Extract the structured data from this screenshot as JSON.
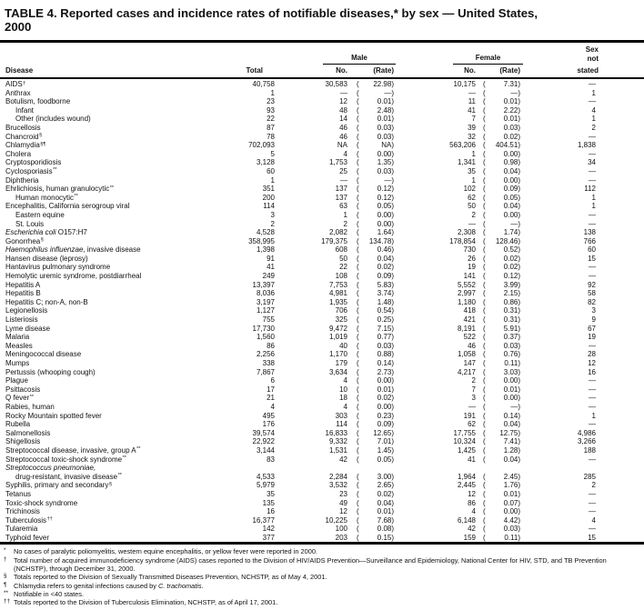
{
  "title": {
    "line1": "TABLE 4. Reported cases and incidence rates of notifiable diseases,* by sex — United States,",
    "line2": "2000"
  },
  "header": {
    "disease": "Disease",
    "total": "Total",
    "male": "Male",
    "female": "Female",
    "no": "No.",
    "rate": "(Rate)",
    "sex1": "Sex",
    "sex2": "not",
    "sex3": "stated"
  },
  "rows": [
    {
      "n": "AIDS",
      "sup": "†",
      "t": "40,758",
      "mn": "30,583",
      "mr": "22.98",
      "fn": "10,175",
      "fr": "7.31",
      "s": "—"
    },
    {
      "n": "Anthrax",
      "t": "1",
      "mn": "—",
      "mr": "—",
      "fn": "—",
      "fr": "—",
      "s": "1"
    },
    {
      "n": "Botulism, foodborne",
      "t": "23",
      "mn": "12",
      "mr": "0.01",
      "fn": "11",
      "fr": "0.01",
      "s": "—"
    },
    {
      "n": "Infant",
      "ind": 1,
      "t": "93",
      "mn": "48",
      "mr": "2.48",
      "fn": "41",
      "fr": "2.22",
      "s": "4"
    },
    {
      "n": "Other (includes wound)",
      "ind": 1,
      "t": "22",
      "mn": "14",
      "mr": "0.01",
      "fn": "7",
      "fr": "0.01",
      "s": "1"
    },
    {
      "n": "Brucellosis",
      "t": "87",
      "mn": "46",
      "mr": "0.03",
      "fn": "39",
      "fr": "0.03",
      "s": "2"
    },
    {
      "n": "Chancroid",
      "sup": "§",
      "t": "78",
      "mn": "46",
      "mr": "0.03",
      "fn": "32",
      "fr": "0.02",
      "s": "—"
    },
    {
      "n": "Chlamydia",
      "sup": "§¶",
      "t": "702,093",
      "mn": "NA",
      "mr": "NA",
      "fn": "563,206",
      "fr": "404.51",
      "s": "1,838"
    },
    {
      "n": "Cholera",
      "t": "5",
      "mn": "4",
      "mr": "0.00",
      "fn": "1",
      "fr": "0.00",
      "s": "—"
    },
    {
      "n": "Cryptosporidiosis",
      "t": "3,128",
      "mn": "1,753",
      "mr": "1.35",
      "fn": "1,341",
      "fr": "0.98",
      "s": "34"
    },
    {
      "n": "Cyclosporiasis",
      "sup": "**",
      "t": "60",
      "mn": "25",
      "mr": "0.03",
      "fn": "35",
      "fr": "0.04",
      "s": "—"
    },
    {
      "n": "Diphtheria",
      "t": "1",
      "mn": "—",
      "mr": "—",
      "fn": "1",
      "fr": "0.00",
      "s": "—"
    },
    {
      "n": "Ehrlichiosis, human granulocytic",
      "sup": "**",
      "t": "351",
      "mn": "137",
      "mr": "0.12",
      "fn": "102",
      "fr": "0.09",
      "s": "112"
    },
    {
      "n": "Human monocytic",
      "sup": "**",
      "ind": 1,
      "t": "200",
      "mn": "137",
      "mr": "0.12",
      "fn": "62",
      "fr": "0.05",
      "s": "1"
    },
    {
      "n": "Encephalitis, California serogroup viral",
      "t": "114",
      "mn": "63",
      "mr": "0.05",
      "fn": "50",
      "fr": "0.04",
      "s": "1"
    },
    {
      "n": "Eastern equine",
      "ind": 1,
      "t": "3",
      "mn": "1",
      "mr": "0.00",
      "fn": "2",
      "fr": "0.00",
      "s": "—"
    },
    {
      "n": "St. Louis",
      "ind": 1,
      "t": "2",
      "mn": "2",
      "mr": "0.00",
      "fn": "—",
      "fr": "—",
      "s": "—"
    },
    {
      "n": [
        {
          "t": "Escherichia coli",
          "i": 1
        },
        {
          "t": " O157:H7"
        }
      ],
      "t": "4,528",
      "mn": "2,082",
      "mr": "1.64",
      "fn": "2,308",
      "fr": "1.74",
      "s": "138"
    },
    {
      "n": "Gonorrhea",
      "sup": "§",
      "t": "358,995",
      "mn": "179,375",
      "mr": "134.78",
      "fn": "178,854",
      "fr": "128.46",
      "s": "766"
    },
    {
      "n": [
        {
          "t": "Haemophilus influenzae",
          "i": 1
        },
        {
          "t": ", invasive disease"
        }
      ],
      "t": "1,398",
      "mn": "608",
      "mr": "0.46",
      "fn": "730",
      "fr": "0.52",
      "s": "60"
    },
    {
      "n": "Hansen disease (leprosy)",
      "t": "91",
      "mn": "50",
      "mr": "0.04",
      "fn": "26",
      "fr": "0.02",
      "s": "15"
    },
    {
      "n": "Hantavirus pulmonary syndrome",
      "t": "41",
      "mn": "22",
      "mr": "0.02",
      "fn": "19",
      "fr": "0.02",
      "s": "—"
    },
    {
      "n": "Hemolytic uremic syndrome, postdiarrheal",
      "t": "249",
      "mn": "108",
      "mr": "0.09",
      "fn": "141",
      "fr": "0.12",
      "s": "—"
    },
    {
      "n": "Hepatitis A",
      "t": "13,397",
      "mn": "7,753",
      "mr": "5.83",
      "fn": "5,552",
      "fr": "3.99",
      "s": "92"
    },
    {
      "n": "Hepatitis B",
      "t": "8,036",
      "mn": "4,981",
      "mr": "3.74",
      "fn": "2,997",
      "fr": "2.15",
      "s": "58"
    },
    {
      "n": "Hepatitis C; non-A, non-B",
      "t": "3,197",
      "mn": "1,935",
      "mr": "1.48",
      "fn": "1,180",
      "fr": "0.86",
      "s": "82"
    },
    {
      "n": "Legionellosis",
      "t": "1,127",
      "mn": "706",
      "mr": "0.54",
      "fn": "418",
      "fr": "0.31",
      "s": "3"
    },
    {
      "n": "Listeriosis",
      "t": "755",
      "mn": "325",
      "mr": "0.25",
      "fn": "421",
      "fr": "0.31",
      "s": "9"
    },
    {
      "n": "Lyme disease",
      "t": "17,730",
      "mn": "9,472",
      "mr": "7.15",
      "fn": "8,191",
      "fr": "5.91",
      "s": "67"
    },
    {
      "n": "Malaria",
      "t": "1,560",
      "mn": "1,019",
      "mr": "0.77",
      "fn": "522",
      "fr": "0.37",
      "s": "19"
    },
    {
      "n": "Measles",
      "t": "86",
      "mn": "40",
      "mr": "0.03",
      "fn": "46",
      "fr": "0.03",
      "s": "—"
    },
    {
      "n": "Meningococcal disease",
      "t": "2,256",
      "mn": "1,170",
      "mr": "0.88",
      "fn": "1,058",
      "fr": "0.76",
      "s": "28"
    },
    {
      "n": "Mumps",
      "t": "338",
      "mn": "179",
      "mr": "0.14",
      "fn": "147",
      "fr": "0.11",
      "s": "12"
    },
    {
      "n": "Pertussis (whooping cough)",
      "t": "7,867",
      "mn": "3,634",
      "mr": "2.73",
      "fn": "4,217",
      "fr": "3.03",
      "s": "16"
    },
    {
      "n": "Plague",
      "t": "6",
      "mn": "4",
      "mr": "0.00",
      "fn": "2",
      "fr": "0.00",
      "s": "—"
    },
    {
      "n": "Psittacosis",
      "t": "17",
      "mn": "10",
      "mr": "0.01",
      "fn": "7",
      "fr": "0.01",
      "s": "—"
    },
    {
      "n": "Q fever",
      "sup": "**",
      "t": "21",
      "mn": "18",
      "mr": "0.02",
      "fn": "3",
      "fr": "0.00",
      "s": "—"
    },
    {
      "n": "Rabies, human",
      "t": "4",
      "mn": "4",
      "mr": "0.00",
      "fn": "—",
      "fr": "—",
      "s": "—"
    },
    {
      "n": "Rocky Mountain spotted fever",
      "t": "495",
      "mn": "303",
      "mr": "0.23",
      "fn": "191",
      "fr": "0.14",
      "s": "1"
    },
    {
      "n": "Rubella",
      "t": "176",
      "mn": "114",
      "mr": "0.09",
      "fn": "62",
      "fr": "0.04",
      "s": "—"
    },
    {
      "n": "Salmonellosis",
      "t": "39,574",
      "mn": "16,833",
      "mr": "12.65",
      "fn": "17,755",
      "fr": "12.75",
      "s": "4,986"
    },
    {
      "n": "Shigellosis",
      "t": "22,922",
      "mn": "9,332",
      "mr": "7.01",
      "fn": "10,324",
      "fr": "7.41",
      "s": "3,266"
    },
    {
      "n": "Streptococcal disease, invasive, group A",
      "sup": "**",
      "t": "3,144",
      "mn": "1,531",
      "mr": "1.45",
      "fn": "1,425",
      "fr": "1.28",
      "s": "188"
    },
    {
      "n": "Streptococcal toxic-shock syndrome",
      "sup": "**",
      "t": "83",
      "mn": "42",
      "mr": "0.05",
      "fn": "41",
      "fr": "0.04",
      "s": "—"
    },
    {
      "n": [
        {
          "t": "Streptococcus pneumoniae,",
          "i": 1
        }
      ]
    },
    {
      "n": "drug-resistant, invasive disease",
      "sup": "**",
      "ind": 1,
      "t": "4,533",
      "mn": "2,284",
      "mr": "3.00",
      "fn": "1,964",
      "fr": "2.45",
      "s": "285"
    },
    {
      "n": "Syphilis, primary and secondary",
      "sup": "§",
      "t": "5,979",
      "mn": "3,532",
      "mr": "2.65",
      "fn": "2,445",
      "fr": "1.76",
      "s": "2"
    },
    {
      "n": "Tetanus",
      "t": "35",
      "mn": "23",
      "mr": "0.02",
      "fn": "12",
      "fr": "0.01",
      "s": "—"
    },
    {
      "n": "Toxic-shock syndrome",
      "t": "135",
      "mn": "49",
      "mr": "0.04",
      "fn": "86",
      "fr": "0.07",
      "s": "—"
    },
    {
      "n": "Trichinosis",
      "t": "16",
      "mn": "12",
      "mr": "0.01",
      "fn": "4",
      "fr": "0.00",
      "s": "—"
    },
    {
      "n": "Tuberculosis",
      "sup": "††",
      "t": "16,377",
      "mn": "10,225",
      "mr": "7.68",
      "fn": "6,148",
      "fr": "4.42",
      "s": "4"
    },
    {
      "n": "Tularemia",
      "t": "142",
      "mn": "100",
      "mr": "0.08",
      "fn": "42",
      "fr": "0.03",
      "s": "—"
    },
    {
      "n": "Typhoid fever",
      "t": "377",
      "mn": "203",
      "mr": "0.15",
      "fn": "159",
      "fr": "0.11",
      "s": "15"
    }
  ],
  "footnotes": [
    {
      "sym": "*",
      "text": "No cases of paralytic poliomyelitis, western equine encephalitis, or yellow fever were reported in 2000."
    },
    {
      "sym": "†",
      "text": "Total number of acquired immunodeficiency syndrome (AIDS) cases reported to the Division of HIV/AIDS Prevention—Surveillance and Epidemiology, National Center for HIV, STD, and TB Prevention (NCHSTP), through December 31, 2000."
    },
    {
      "sym": "§",
      "text": "Totals reported to the Division of Sexually Transmitted Diseases Prevention, NCHSTP, as of May 4, 2001."
    },
    {
      "sym": "¶",
      "text": [
        {
          "t": "Chlamydia refers to genital infections caused by "
        },
        {
          "t": "C. trachomatis",
          "i": 1
        },
        {
          "t": "."
        }
      ]
    },
    {
      "sym": "**",
      "text": "Notifiable in <40 states."
    },
    {
      "sym": "††",
      "text": "Totals reported to the Division of Tuberculosis Elimination, NCHSTP, as of April 17, 2001."
    }
  ],
  "colors": {
    "background": "#ffffff",
    "text": "#111111",
    "rule": "#000000"
  }
}
